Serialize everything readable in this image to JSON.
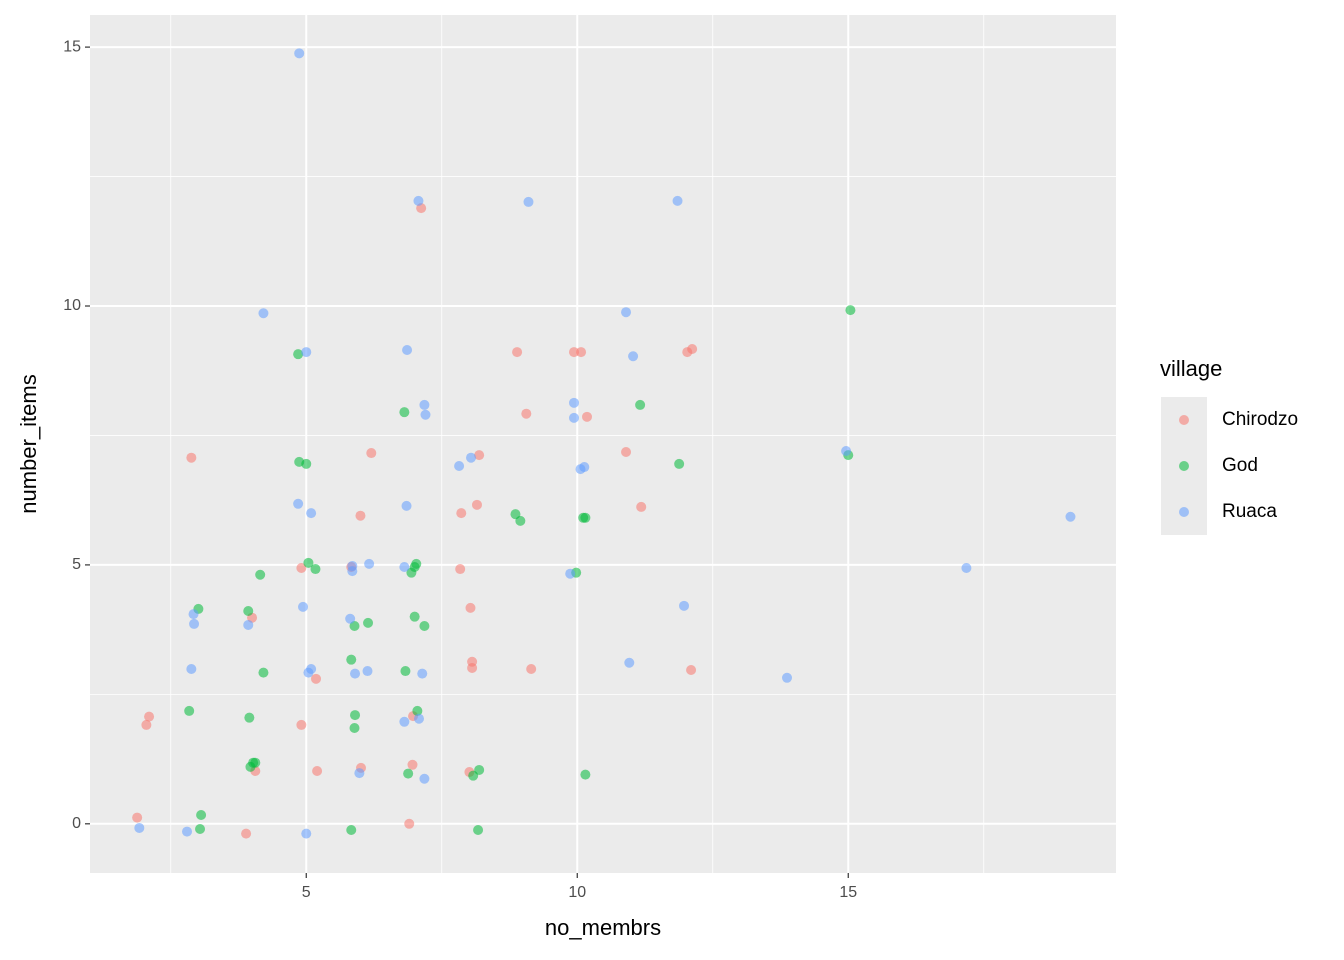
{
  "chart_data": {
    "type": "scatter",
    "x_label": "no_membrs",
    "y_label": "number_items",
    "legend_title": "village",
    "legend_position": "right",
    "xlim": [
      1.01,
      19.94
    ],
    "ylim": [
      -0.95,
      15.62
    ],
    "xticks": [
      5,
      10,
      15
    ],
    "yticks": [
      0,
      5,
      10,
      15
    ],
    "grid": true,
    "series": [
      {
        "name": "Chirodzo",
        "color": "#F8766D",
        "x": [
          1.88,
          2.05,
          2.1,
          2.88,
          3.89,
          4.0,
          4.06,
          4.91,
          4.91,
          5.18,
          5.2,
          5.83,
          6.0,
          6.01,
          6.2,
          6.9,
          6.97,
          6.96,
          7.12,
          7.84,
          7.86,
          8.03,
          8.01,
          8.06,
          8.06,
          8.15,
          8.19,
          8.89,
          9.06,
          9.15,
          9.94,
          10.07,
          10.18,
          10.9,
          11.18,
          12.03,
          12.12,
          12.1
        ],
        "values": [
          0.12,
          1.91,
          2.07,
          7.07,
          -0.19,
          3.98,
          1.02,
          4.94,
          1.91,
          2.8,
          1.02,
          4.96,
          5.95,
          1.08,
          7.16,
          0.0,
          2.08,
          1.14,
          11.89,
          4.92,
          6.0,
          4.17,
          1.0,
          3.13,
          3.01,
          6.16,
          7.12,
          9.11,
          7.92,
          2.99,
          9.11,
          9.11,
          7.86,
          7.18,
          6.12,
          9.11,
          9.17,
          2.97
        ]
      },
      {
        "name": "God",
        "color": "#00BA38",
        "x": [
          2.84,
          3.04,
          3.06,
          3.01,
          3.93,
          3.95,
          3.97,
          4.02,
          4.06,
          4.15,
          4.21,
          4.85,
          4.87,
          5.0,
          5.04,
          5.17,
          5.83,
          5.83,
          5.89,
          5.9,
          5.89,
          6.14,
          6.81,
          6.83,
          6.88,
          6.94,
          7.0,
          7.03,
          7.0,
          7.05,
          7.18,
          8.08,
          8.17,
          8.19,
          8.86,
          8.95,
          9.98,
          10.11,
          10.15,
          10.15,
          11.16,
          11.88,
          15.0,
          15.04
        ],
        "values": [
          2.18,
          -0.1,
          0.17,
          4.15,
          4.11,
          2.05,
          1.1,
          1.18,
          1.18,
          4.81,
          2.92,
          9.07,
          6.99,
          6.95,
          5.04,
          4.92,
          -0.12,
          3.17,
          3.82,
          2.1,
          1.85,
          3.88,
          7.95,
          2.95,
          0.97,
          4.85,
          4.96,
          5.02,
          4.0,
          2.18,
          3.82,
          0.93,
          -0.12,
          1.04,
          5.98,
          5.85,
          4.85,
          5.91,
          5.91,
          0.95,
          8.09,
          6.95,
          7.12,
          9.92
        ]
      },
      {
        "name": "Ruaca",
        "color": "#619CFF",
        "x": [
          1.92,
          2.8,
          2.88,
          2.92,
          2.93,
          3.93,
          4.21,
          4.85,
          4.87,
          4.94,
          5.0,
          5.0,
          5.04,
          5.09,
          5.09,
          5.81,
          5.85,
          5.85,
          5.9,
          5.98,
          6.13,
          6.16,
          6.81,
          6.81,
          6.85,
          6.86,
          7.07,
          7.08,
          7.14,
          7.18,
          7.18,
          7.2,
          7.82,
          8.04,
          9.1,
          9.87,
          9.94,
          9.94,
          10.06,
          10.13,
          10.9,
          11.03,
          10.96,
          11.85,
          11.97,
          13.87,
          14.96,
          17.18,
          19.1
        ],
        "values": [
          -0.08,
          -0.15,
          2.99,
          4.05,
          3.86,
          3.84,
          9.86,
          6.18,
          14.88,
          4.19,
          9.11,
          -0.19,
          2.92,
          2.99,
          6.0,
          3.96,
          4.88,
          4.98,
          2.9,
          0.98,
          2.95,
          5.02,
          1.97,
          4.96,
          6.14,
          9.15,
          12.03,
          2.03,
          2.9,
          0.87,
          8.09,
          7.9,
          6.91,
          7.07,
          12.01,
          4.83,
          8.13,
          7.84,
          6.85,
          6.89,
          9.88,
          9.03,
          3.11,
          12.03,
          4.21,
          2.82,
          7.2,
          4.94,
          5.93
        ]
      }
    ]
  }
}
